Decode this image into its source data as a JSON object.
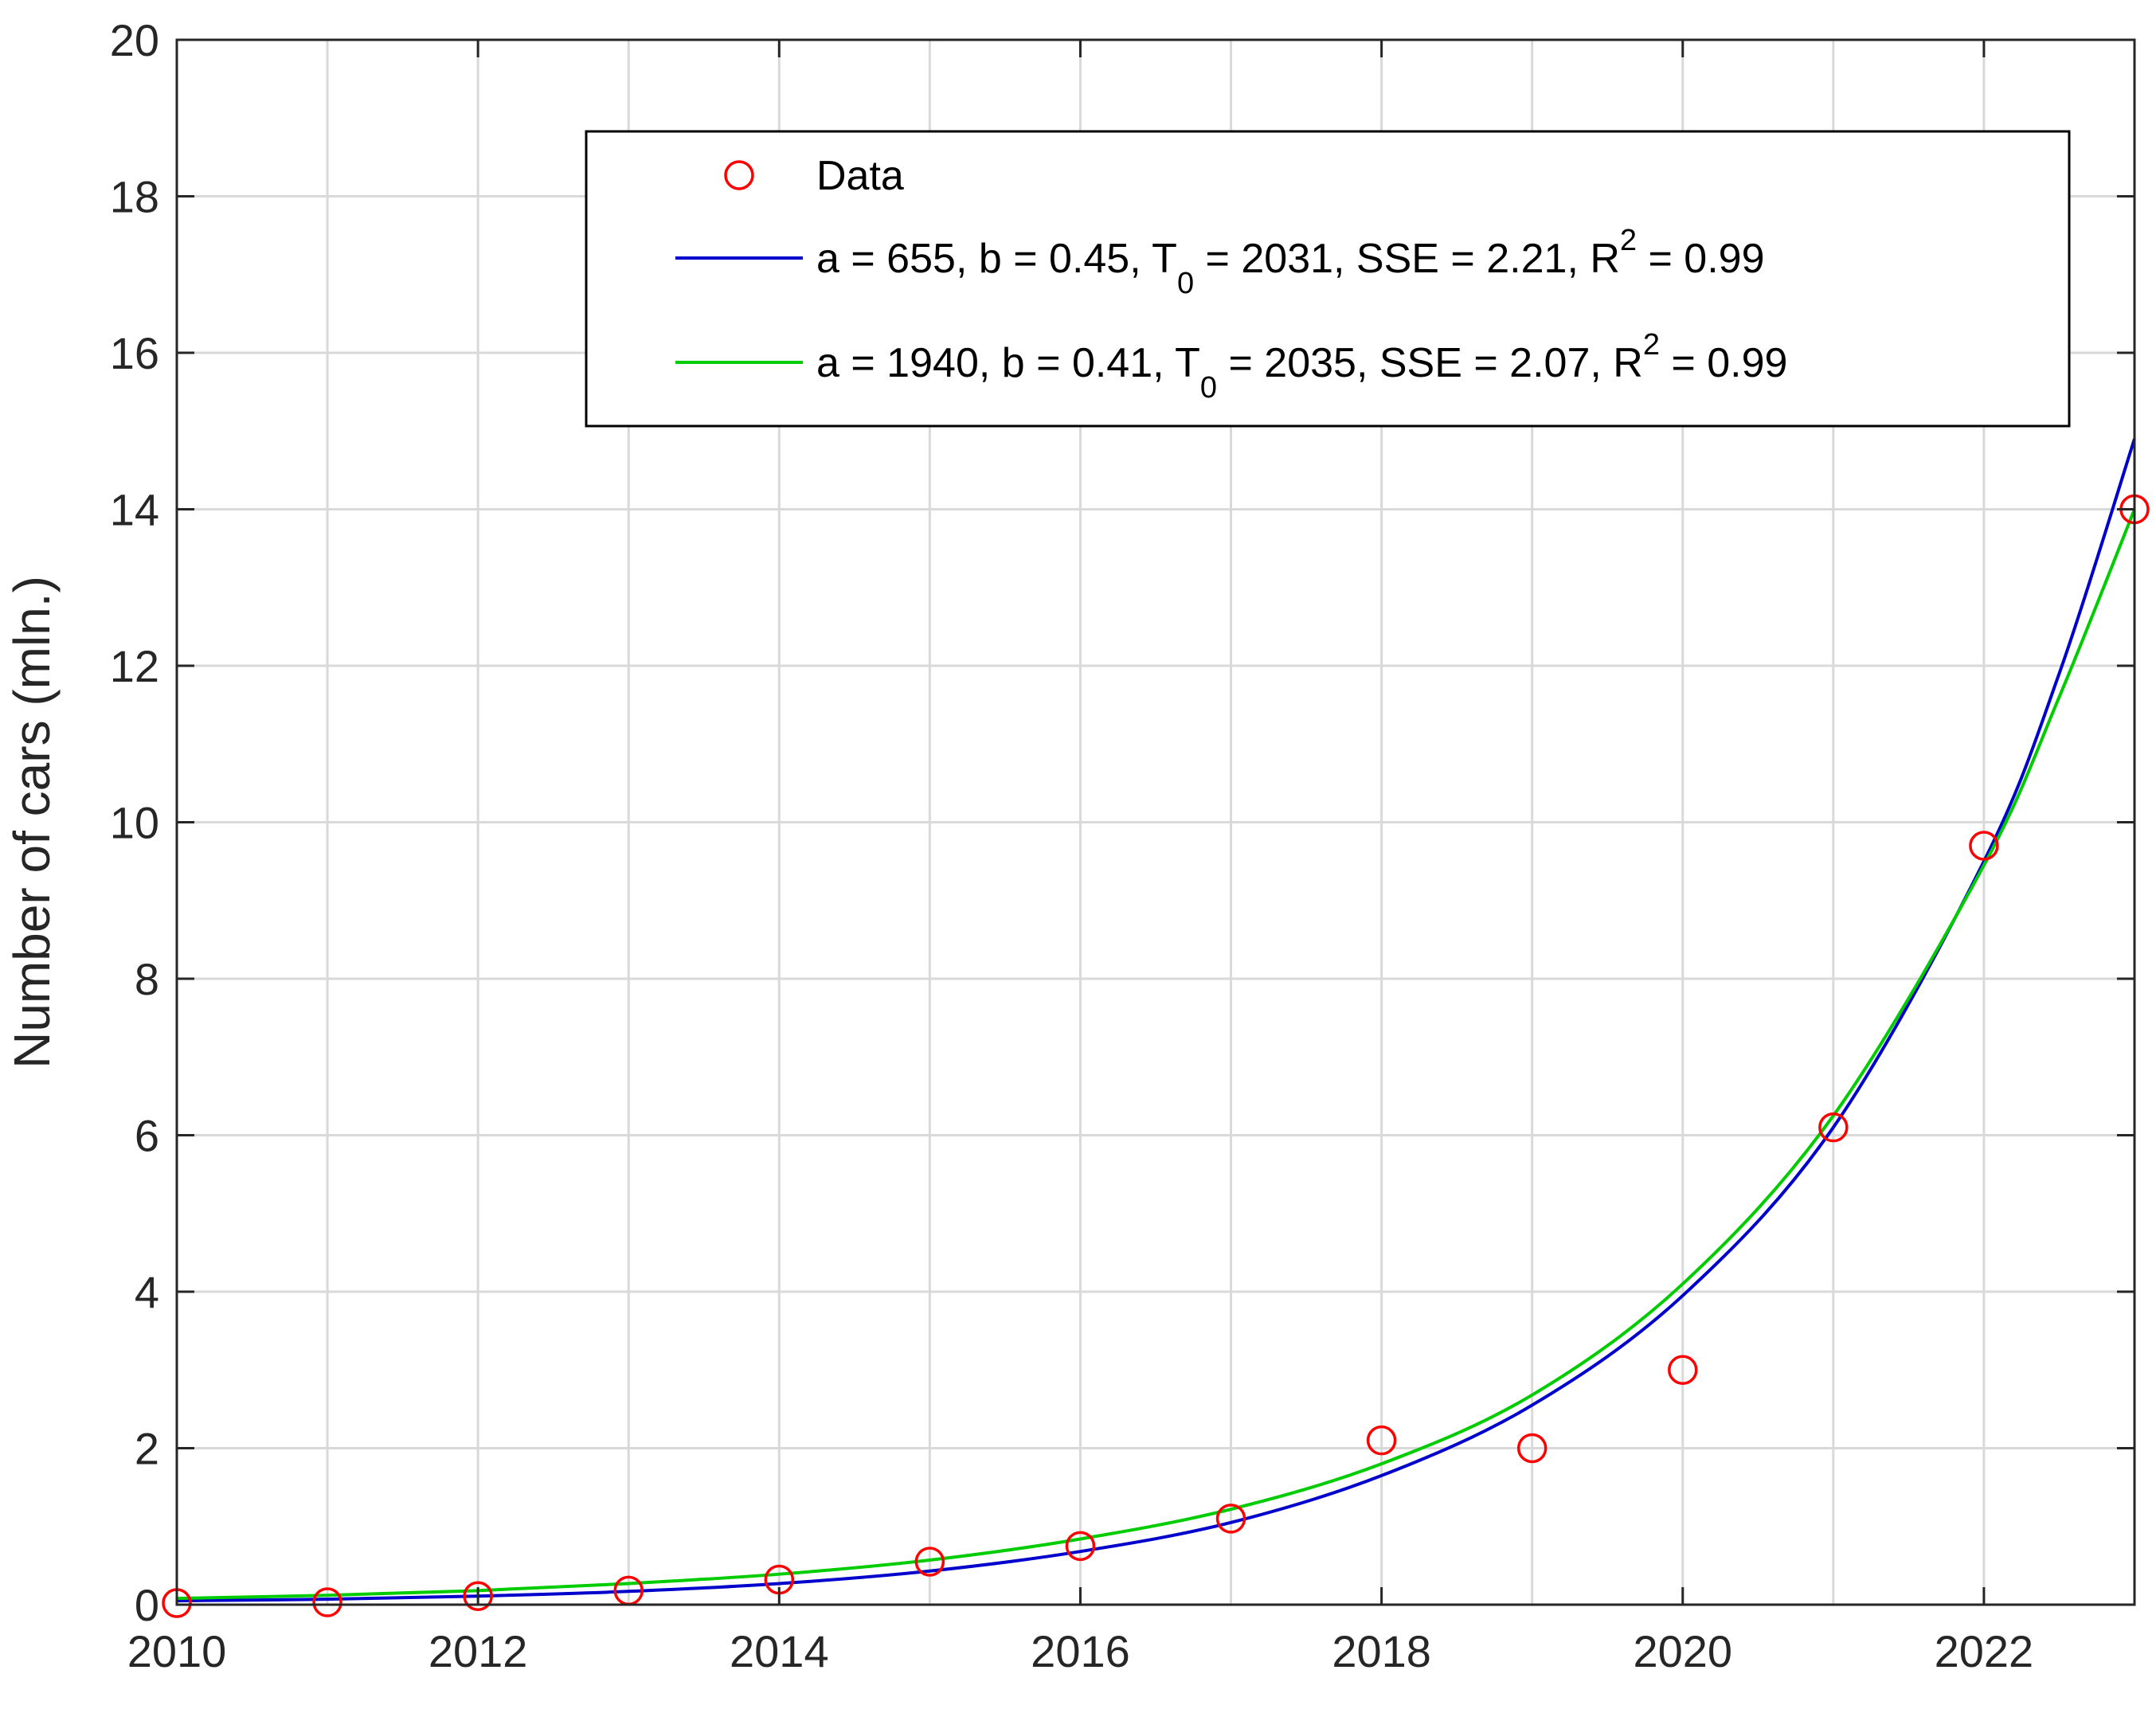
{
  "chart_data": {
    "type": "scatter",
    "ylabel": "Number of cars (mln.)",
    "xlabel": "",
    "xlim": [
      2010,
      2023
    ],
    "ylim": [
      0,
      20
    ],
    "x_ticks": [
      2010,
      2012,
      2014,
      2016,
      2018,
      2020,
      2022
    ],
    "y_ticks": [
      0,
      2,
      4,
      6,
      8,
      10,
      12,
      14,
      16,
      18,
      20
    ],
    "grid": true,
    "legend_position": "top-right",
    "series": [
      {
        "name": "Data",
        "kind": "markers",
        "color": "#ff0000",
        "x": [
          2010,
          2011,
          2012,
          2013,
          2014,
          2015,
          2016,
          2017,
          2018,
          2019,
          2020,
          2021,
          2022,
          2023
        ],
        "y": [
          0.02,
          0.03,
          0.11,
          0.18,
          0.32,
          0.55,
          0.75,
          1.1,
          2.1,
          2.0,
          3.0,
          6.1,
          9.7,
          14.0
        ]
      },
      {
        "name": "a = 655,    b = 0.45, T0 = 2031, SSE = 2.21, R2 = 0.99",
        "kind": "line",
        "color": "#0000cc",
        "x": [
          2010,
          2011,
          2012,
          2013,
          2014,
          2015,
          2016,
          2017,
          2018,
          2019,
          2020,
          2021,
          2022,
          2022.5,
          2023
        ],
        "y": [
          0.05,
          0.07,
          0.11,
          0.17,
          0.27,
          0.43,
          0.68,
          1.05,
          1.65,
          2.55,
          3.95,
          6.1,
          9.5,
          11.9,
          14.9
        ]
      },
      {
        "name": "a = 1940,  b = 0.41, T0 = 2035, SSE = 2.07, R2 = 0.99",
        "kind": "line",
        "color": "#00cc00",
        "x": [
          2010,
          2011,
          2012,
          2013,
          2014,
          2015,
          2016,
          2017,
          2018,
          2019,
          2020,
          2021,
          2022,
          2022.5,
          2023
        ],
        "y": [
          0.08,
          0.12,
          0.18,
          0.27,
          0.39,
          0.57,
          0.84,
          1.22,
          1.8,
          2.68,
          4.1,
          6.25,
          9.45,
          11.6,
          14.0
        ]
      }
    ],
    "legend": [
      {
        "series": 0,
        "text": "Data"
      },
      {
        "series": 1,
        "text_parts": [
          "a = 655,    b = 0.45, T",
          "0",
          " = 2031, SSE = 2.21, R",
          "2",
          " = 0.99"
        ]
      },
      {
        "series": 2,
        "text_parts": [
          "a = 1940,  b = 0.41, T",
          "0",
          " = 2035, SSE = 2.07, R",
          "2",
          " = 0.99"
        ]
      }
    ]
  }
}
